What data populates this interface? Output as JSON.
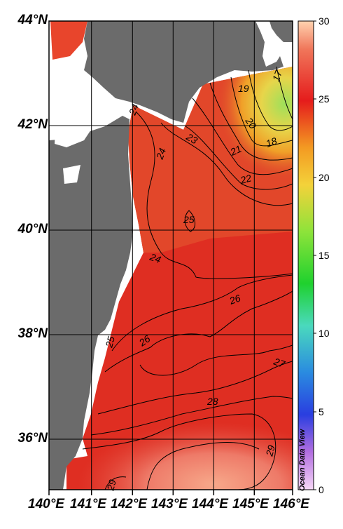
{
  "map": {
    "region": "Pacific coast off northern Honshu / Hokkaido",
    "lat_labels": [
      "44°N",
      "42°N",
      "40°N",
      "38°N",
      "36°N"
    ],
    "lon_labels": [
      "140°E",
      "141°E",
      "142°E",
      "143°E",
      "144°E",
      "145°E",
      "146°E"
    ],
    "credit": "Ocean Data View",
    "colors": {
      "land": "#6b6b6b",
      "no_data": "#ffffff",
      "grid": "#000000",
      "contour": "#000000"
    }
  },
  "colorbar": {
    "labels": [
      "30",
      "25",
      "20",
      "15",
      "10",
      "5",
      "0"
    ],
    "stops": [
      "#ffb78a",
      "#f03a2a",
      "#d6231d",
      "#f0a020",
      "#7ddc3c",
      "#2bd23a",
      "#43c9c3",
      "#2a6fe0",
      "#d89adf",
      "#f6d3f6"
    ]
  },
  "contours": {
    "labels": [
      "17",
      "18",
      "19",
      "20",
      "21",
      "22",
      "23",
      "24",
      "24",
      "25",
      "24",
      "26",
      "25",
      "26",
      "27",
      "28",
      "29",
      "29"
    ]
  }
}
